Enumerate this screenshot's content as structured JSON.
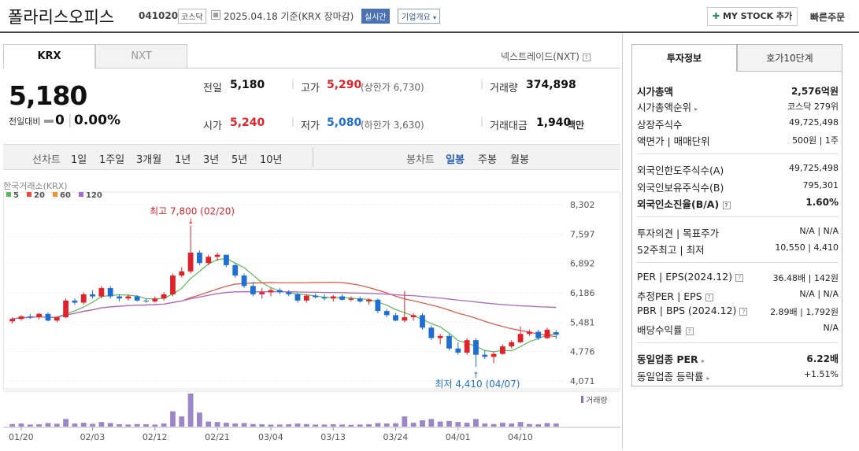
{
  "header": {
    "title": "폴라리스오피스",
    "code": "041020",
    "market": "코스닥",
    "date_label": "2025.04.18  기준(KRX 장마감)",
    "realtime": "실시간",
    "company_overview": "기업개요",
    "my_stock_button": "MY STOCK 추가",
    "quick_order": "빠른주문"
  },
  "exchange_tabs": {
    "krx": "KRX",
    "nxt": "NXT",
    "nxt_link": "넥스트레이드(NXT)"
  },
  "price": {
    "current": "5,180",
    "change_label": "전일대비",
    "change_value": "0",
    "change_pct": "0.00%",
    "prev_label": "전일",
    "prev_value": "5,180",
    "high_label": "고가",
    "high_value": "5,290",
    "upper_limit": "(상한가 6,730)",
    "volume_label": "거래량",
    "volume_value": "374,898",
    "open_label": "시가",
    "open_value": "5,240",
    "low_label": "저가",
    "low_value": "5,080",
    "lower_limit": "(하한가 3,630)",
    "amount_label": "거래대금",
    "amount_value": "1,940",
    "amount_unit": "백만"
  },
  "periods": {
    "line_label": "선차트",
    "items": [
      "1일",
      "1주일",
      "3개월",
      "1년",
      "3년",
      "5년",
      "10년"
    ],
    "candle_label": "봉차트",
    "candle_items": [
      "일봉",
      "주봉",
      "월봉"
    ],
    "active_candle": "일봉"
  },
  "chart_data": {
    "type": "candlestick",
    "source_label": "한국거래소(KRX)",
    "legend": [
      {
        "name": "5",
        "color": "#5cb85c"
      },
      {
        "name": "20",
        "color": "#e74c3c"
      },
      {
        "name": "60",
        "color": "#f0932b"
      },
      {
        "name": "120",
        "color": "#a66bd6"
      }
    ],
    "y_ticks": [
      "8,302",
      "7,597",
      "6,892",
      "6,186",
      "5,481",
      "4,776",
      "4,071"
    ],
    "y_range": [
      4071,
      8302
    ],
    "x_ticks": [
      "01/20",
      "02/03",
      "02/12",
      "02/21",
      "03/04",
      "03/13",
      "03/24",
      "04/01",
      "04/10"
    ],
    "high_annotation": "최고 7,800 (02/20)",
    "low_annotation": "최저 4,410 (04/07)",
    "volume_label": "거래량",
    "candles": [
      [
        5500,
        5600,
        5450,
        5560
      ],
      [
        5560,
        5650,
        5520,
        5620
      ],
      [
        5620,
        5680,
        5560,
        5600
      ],
      [
        5600,
        5700,
        5550,
        5680
      ],
      [
        5680,
        5720,
        5500,
        5520
      ],
      [
        5520,
        5620,
        5480,
        5600
      ],
      [
        5600,
        6050,
        5580,
        6000
      ],
      [
        6000,
        6050,
        5900,
        5950
      ],
      [
        5950,
        6200,
        5900,
        6150
      ],
      [
        6150,
        6250,
        6050,
        6100
      ],
      [
        6100,
        6350,
        6050,
        6300
      ],
      [
        6300,
        6350,
        6050,
        6100
      ],
      [
        6100,
        6150,
        5980,
        6050
      ],
      [
        6050,
        6150,
        6000,
        6100
      ],
      [
        6100,
        6130,
        5980,
        6000
      ],
      [
        6000,
        6050,
        5950,
        5980
      ],
      [
        5980,
        6100,
        5950,
        6050
      ],
      [
        6050,
        6200,
        6000,
        6150
      ],
      [
        6150,
        6650,
        6100,
        6600
      ],
      [
        6600,
        6800,
        6550,
        6700
      ],
      [
        6700,
        7800,
        6650,
        7150
      ],
      [
        7150,
        7200,
        6850,
        6900
      ],
      [
        6900,
        7100,
        6850,
        7050
      ],
      [
        7050,
        7150,
        6950,
        7100
      ],
      [
        7100,
        7100,
        6800,
        6850
      ],
      [
        6850,
        6900,
        6550,
        6600
      ],
      [
        6600,
        6650,
        6300,
        6350
      ],
      [
        6350,
        6450,
        6100,
        6150
      ],
      [
        6150,
        6300,
        6050,
        6200
      ],
      [
        6200,
        6300,
        6100,
        6250
      ],
      [
        6250,
        6300,
        6150,
        6200
      ],
      [
        6200,
        6250,
        6100,
        6150
      ],
      [
        6150,
        6180,
        5950,
        6000
      ],
      [
        6000,
        6150,
        5950,
        6120
      ],
      [
        6120,
        6170,
        6050,
        6080
      ],
      [
        6080,
        6150,
        6000,
        6050
      ],
      [
        6050,
        6130,
        5980,
        6100
      ],
      [
        6100,
        6150,
        6000,
        6020
      ],
      [
        6020,
        6100,
        5980,
        6050
      ],
      [
        6050,
        6100,
        5950,
        5980
      ],
      [
        5980,
        6050,
        5900,
        6020
      ],
      [
        6020,
        6050,
        5700,
        5750
      ],
      [
        5750,
        5800,
        5600,
        5650
      ],
      [
        5650,
        5700,
        5500,
        5520
      ],
      [
        5520,
        6230,
        5480,
        5600
      ],
      [
        5600,
        5700,
        5520,
        5650
      ],
      [
        5650,
        5700,
        5300,
        5350
      ],
      [
        5350,
        5400,
        5050,
        5100
      ],
      [
        5100,
        5200,
        4950,
        5150
      ],
      [
        5150,
        5200,
        4800,
        4850
      ],
      [
        4850,
        5000,
        4700,
        4750
      ],
      [
        4750,
        5100,
        4700,
        5050
      ],
      [
        5050,
        5100,
        4410,
        4700
      ],
      [
        4700,
        4800,
        4600,
        4650
      ],
      [
        4650,
        4780,
        4500,
        4720
      ],
      [
        4720,
        4950,
        4700,
        4900
      ],
      [
        4900,
        5050,
        4850,
        5000
      ],
      [
        5000,
        5380,
        4980,
        5200
      ],
      [
        5200,
        5300,
        5150,
        5250
      ],
      [
        5250,
        5300,
        5050,
        5100
      ],
      [
        5100,
        5350,
        5080,
        5300
      ],
      [
        5240,
        5290,
        5080,
        5180
      ]
    ],
    "volumes": [
      10,
      12,
      8,
      9,
      14,
      11,
      30,
      12,
      15,
      11,
      18,
      14,
      9,
      8,
      10,
      9,
      8,
      12,
      60,
      40,
      130,
      55,
      20,
      18,
      15,
      12,
      14,
      10,
      9,
      8,
      8,
      9,
      12,
      10,
      8,
      8,
      9,
      8,
      7,
      8,
      9,
      14,
      12,
      13,
      40,
      15,
      25,
      30,
      20,
      22,
      18,
      15,
      30,
      12,
      10,
      15,
      12,
      18,
      10,
      9,
      14,
      12
    ]
  },
  "right_tabs": {
    "invest_info": "투자정보",
    "hoga10": "호가10단계"
  },
  "invest": {
    "market_cap_label": "시가총액",
    "market_cap_value": "2,576억원",
    "cap_rank_label": "시가총액순위",
    "cap_rank_value": "코스닥 279위",
    "shares_label": "상장주식수",
    "shares_value": "49,725,498",
    "par_label": "액면가 | 매매단위",
    "par_value": "500원 | 1주",
    "foreign_limit_label": "외국인한도주식수(A)",
    "foreign_limit_value": "49,725,498",
    "foreign_hold_label": "외국인보유주식수(B)",
    "foreign_hold_value": "795,301",
    "foreign_ratio_label": "외국인소진율(B/A)",
    "foreign_ratio_value": "1.60%",
    "opinion_label": "투자의견 | 목표주가",
    "opinion_value": "N/A | N/A",
    "w52_label": "52주최고 | 최저",
    "w52_value": "10,550 | 4,410",
    "per_label": "PER | EPS(2024.12)",
    "per_value": "36.48배 | 142원",
    "est_per_label": "추정PER | EPS",
    "est_per_value": "N/A | N/A",
    "pbr_label": "PBR | BPS (2024.12)",
    "pbr_value": "2.89배 | 1,792원",
    "div_label": "배당수익률",
    "div_value": "N/A",
    "industry_per_label": "동일업종 PER",
    "industry_per_value": "6.22배",
    "industry_rate_label": "동일업종 등락률",
    "industry_rate_value": "+1.51%"
  }
}
